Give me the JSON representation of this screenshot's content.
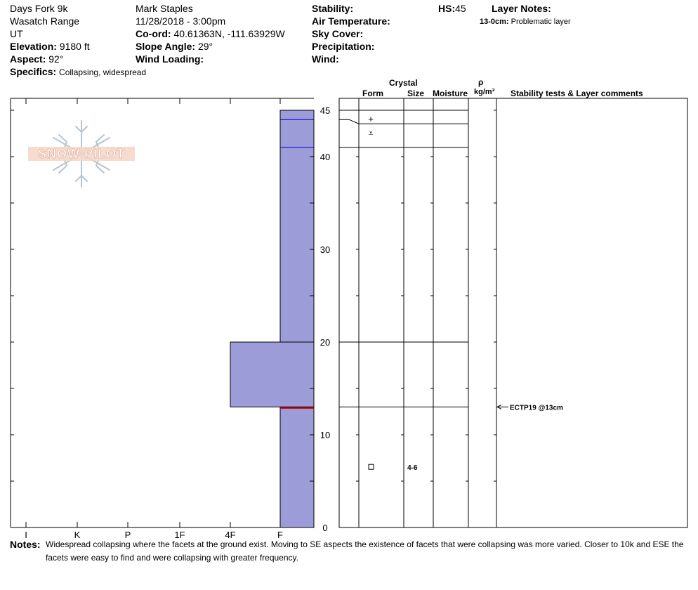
{
  "header": {
    "location": "Days Fork 9k",
    "range": "Wasatch Range",
    "state": "UT",
    "elevation_label": "Elevation:",
    "elevation_value": "9180 ft",
    "aspect_label": "Aspect:",
    "aspect_value": "92°",
    "specifics_label": "Specifics:",
    "specifics_value": "Collapsing, widespread",
    "observer": "Mark Staples",
    "datetime": "11/28/2018 - 3:00pm",
    "coord_label": "Co-ord:",
    "coord_value": "40.61363N, -111.63929W",
    "slope_label": "Slope Angle:",
    "slope_value": "29°",
    "wind_loading_label": "Wind Loading:",
    "stability_label": "Stability:",
    "air_temp_label": "Air Temperature:",
    "sky_cover_label": "Sky Cover:",
    "precip_label": "Precipitation:",
    "wind_label": "Wind:",
    "hs_label": "HS:",
    "hs_value": "45",
    "layer_notes_label": "Layer Notes:",
    "layer_note_range": "13-0cm:",
    "layer_note_text": "Problematic layer"
  },
  "logo": {
    "text": "SNOW PILOT"
  },
  "columns": {
    "crystal": "Crystal",
    "form": "Form",
    "size": "Size",
    "moisture": "Moisture",
    "rho": "ρ",
    "density_unit": "kg/m³",
    "stability": "Stability tests & Layer comments"
  },
  "chart_data": {
    "type": "bar",
    "title": "",
    "ylabel": "",
    "ylim": [
      0,
      45
    ],
    "y_ticks": [
      0,
      10,
      20,
      30,
      40,
      45
    ],
    "hardness_scale": [
      "I",
      "K",
      "P",
      "1F",
      "4F",
      "F"
    ],
    "layers": [
      {
        "top": 45,
        "bottom": 20,
        "hardness": "F"
      },
      {
        "top": 20,
        "bottom": 13,
        "hardness": "4F"
      },
      {
        "top": 13,
        "bottom": 0,
        "hardness": "F"
      }
    ],
    "layer_boundaries": [
      45,
      44,
      41,
      20,
      13
    ],
    "crystal_rows": [
      {
        "depth": 44,
        "form": "+",
        "size": ""
      },
      {
        "depth": 42.5,
        "form": "⩡",
        "size": ""
      },
      {
        "depth": 6.5,
        "form": "□",
        "size": "4-6"
      }
    ],
    "tests": [
      {
        "depth": 13,
        "text": "ECTP19 @13cm"
      }
    ]
  },
  "notes": {
    "label": "Notes:",
    "text": "Widespread collapsing where the facets at the ground exist. Moving to SE aspects the existence of facets that were collapsing was more varied. Closer to 10k and ESE the facets were easy to find and were collapsing with greater frequency."
  },
  "colors": {
    "layer_fill": "#9c9cd9",
    "layer_line": "#0000cc",
    "weak_layer": "#cc0000"
  }
}
